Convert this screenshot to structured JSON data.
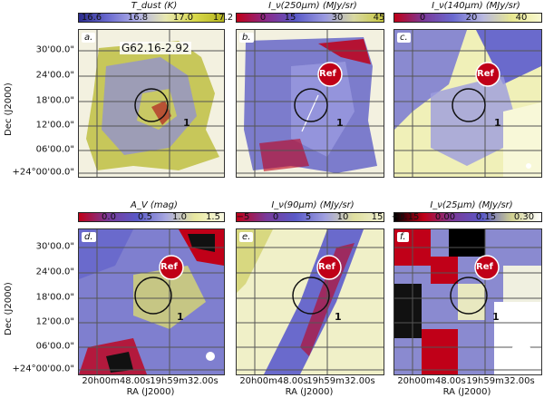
{
  "object_name": "G62.16-2.92",
  "ref_label": "Ref",
  "marker_label": "1",
  "axes": {
    "ylabel": "Dec (J2000)",
    "xlabel": "RA (J2000)",
    "dec_ticks": [
      "30'00.0\"",
      "24'00.0\"",
      "18'00.0\"",
      "12'00.0\"",
      "06'00.0\"",
      "+24°00'00.0\""
    ],
    "ra_ticks": [
      "20h00m48.00s",
      "19h59m32.00s"
    ]
  },
  "panels": [
    {
      "tag": "a.",
      "cbar_title": "T_dust (K)",
      "ticks": [
        "16.6",
        "16.8",
        "17.0",
        "17.2"
      ],
      "cmap": "dust"
    },
    {
      "tag": "b.",
      "cbar_title": "I_ν(250μm) (MJy/sr)",
      "ticks": [
        "0",
        "15",
        "30",
        "45"
      ],
      "cmap": "cool"
    },
    {
      "tag": "c.",
      "cbar_title": "I_ν(140μm) (MJy/sr)",
      "ticks": [
        "0",
        "20",
        "40"
      ],
      "cmap": "warm"
    },
    {
      "tag": "d.",
      "cbar_title": "A_V (mag)",
      "ticks": [
        "0.0",
        "0.5",
        "1.0",
        "1.5"
      ],
      "cmap": "av"
    },
    {
      "tag": "e.",
      "cbar_title": "I_ν(90μm) (MJy/sr)",
      "ticks": [
        "−5",
        "0",
        "5",
        "10",
        "15"
      ],
      "cmap": "90"
    },
    {
      "tag": "f.",
      "cbar_title": "I_ν(25μm) (MJy/sr)",
      "ticks": [
        "−0.15",
        "0.00",
        "0.15",
        "0.30"
      ],
      "cmap": "25"
    }
  ]
}
